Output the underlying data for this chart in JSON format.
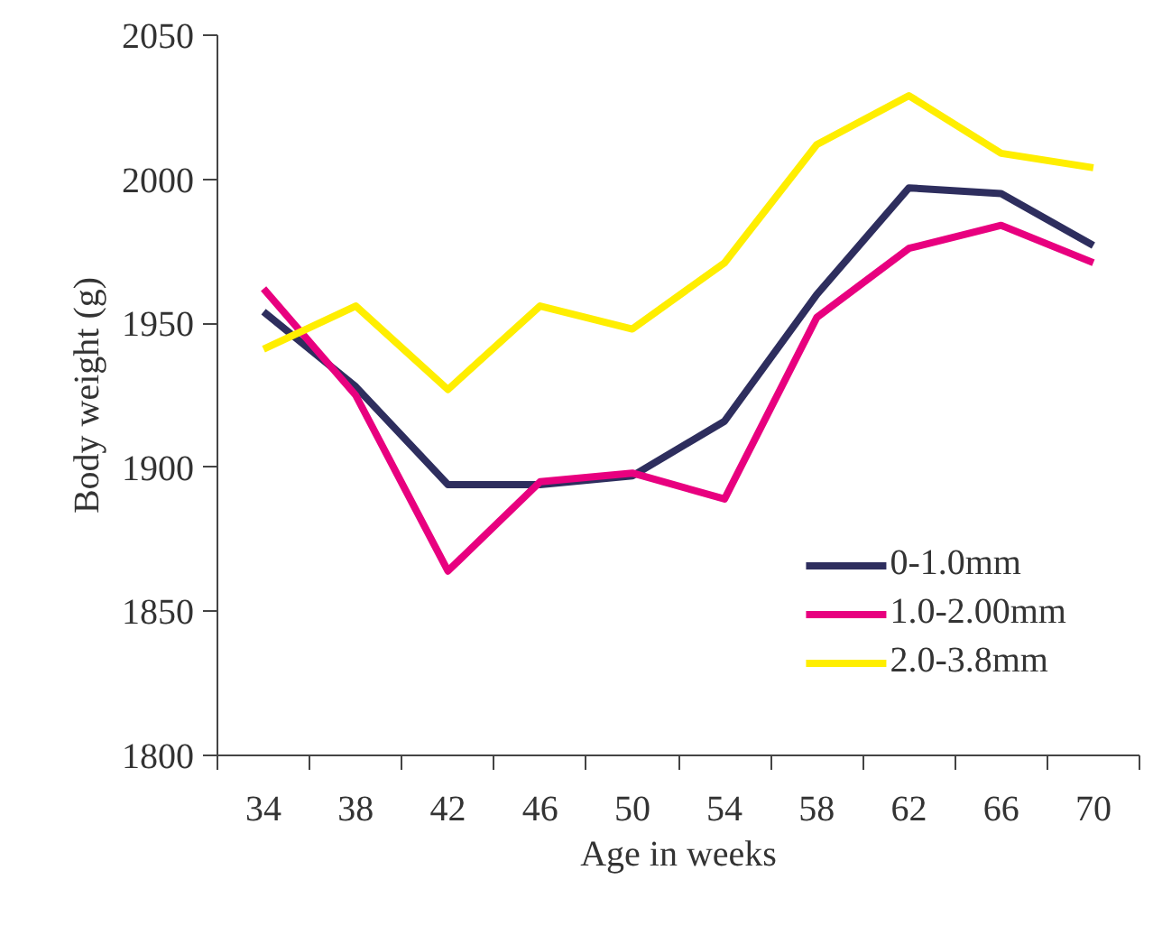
{
  "chart_data": {
    "type": "line",
    "xlabel": "Age in weeks",
    "ylabel": "Body weight (g)",
    "categories": [
      "34",
      "38",
      "42",
      "46",
      "50",
      "54",
      "58",
      "62",
      "66",
      "70"
    ],
    "ylim": [
      1800,
      2050
    ],
    "yticks": [
      1800,
      1850,
      1900,
      1950,
      2000,
      2050
    ],
    "grid": false,
    "legend": "bottom right",
    "marker": "none",
    "line_style": "solid",
    "series": [
      {
        "name": "0-1.0mm",
        "color": "#2e2e5e",
        "values": [
          1954,
          1928,
          1894,
          1894,
          1897,
          1916,
          1960,
          1997,
          1995,
          1977
        ]
      },
      {
        "name": "1.0-2.00mm",
        "color": "#e8007f",
        "values": [
          1962,
          1925,
          1864,
          1895,
          1898,
          1889,
          1952,
          1976,
          1984,
          1971
        ]
      },
      {
        "name": "2.0-3.8mm",
        "color": "#ffee00",
        "values": [
          1941,
          1956,
          1927,
          1956,
          1948,
          1971,
          2012,
          2029,
          2009,
          2004
        ]
      }
    ]
  }
}
